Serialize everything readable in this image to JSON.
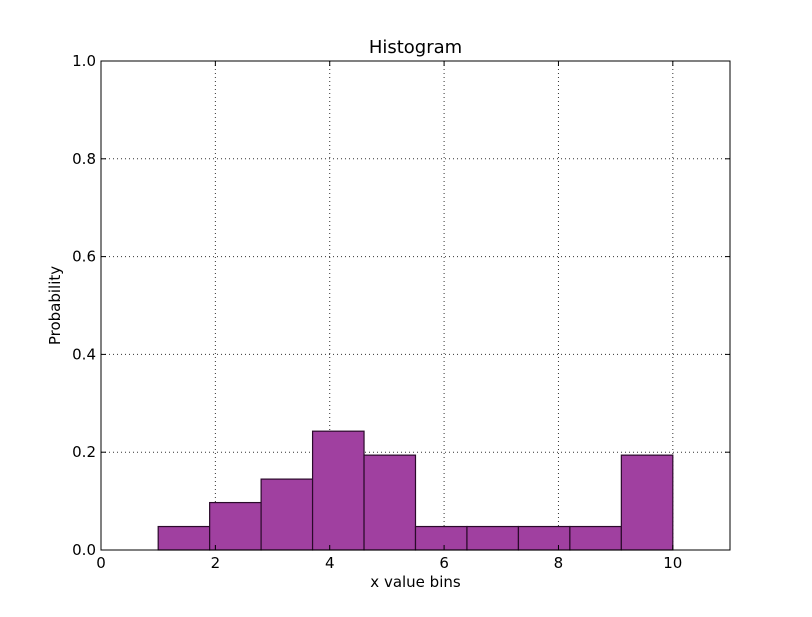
{
  "chart_data": {
    "type": "bar",
    "title": "Histogram",
    "xlabel": "x value bins",
    "ylabel": "Probability",
    "xlim": [
      0,
      11
    ],
    "ylim": [
      0,
      1.0
    ],
    "xticks": [
      0,
      2,
      4,
      6,
      8,
      10
    ],
    "xtick_labels": [
      "0",
      "2",
      "4",
      "6",
      "8",
      "10"
    ],
    "yticks": [
      0.0,
      0.2,
      0.4,
      0.6,
      0.8,
      1.0
    ],
    "ytick_labels": [
      "0.0",
      "0.2",
      "0.4",
      "0.6",
      "0.8",
      "1.0"
    ],
    "grid": true,
    "bar_color": "#a040a0",
    "edge_color": "#2a0a2a",
    "bins": [
      {
        "x0": 1.0,
        "x1": 1.9,
        "value": 0.048
      },
      {
        "x0": 1.9,
        "x1": 2.8,
        "value": 0.097
      },
      {
        "x0": 2.8,
        "x1": 3.7,
        "value": 0.145
      },
      {
        "x0": 3.7,
        "x1": 4.6,
        "value": 0.243
      },
      {
        "x0": 4.6,
        "x1": 5.5,
        "value": 0.194
      },
      {
        "x0": 5.5,
        "x1": 6.4,
        "value": 0.048
      },
      {
        "x0": 6.4,
        "x1": 7.3,
        "value": 0.048
      },
      {
        "x0": 7.3,
        "x1": 8.2,
        "value": 0.048
      },
      {
        "x0": 8.2,
        "x1": 9.1,
        "value": 0.048
      },
      {
        "x0": 9.1,
        "x1": 10.0,
        "value": 0.194
      }
    ]
  }
}
